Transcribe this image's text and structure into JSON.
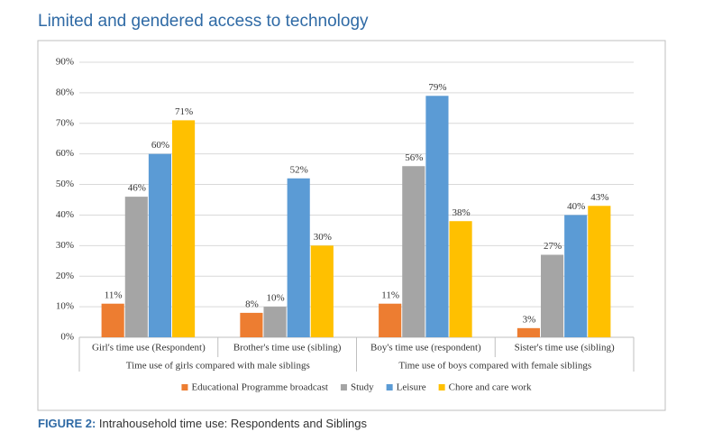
{
  "chart_data": {
    "type": "bar",
    "title": "Limited and gendered access to technology",
    "categories": [
      "Girl's time use (Respondent)",
      "Brother's time use (sibling)",
      "Boy's time use (respondent)",
      "Sister's time use (sibling)"
    ],
    "groups": [
      {
        "label": "Time use of girls compared with male siblings",
        "span": 2
      },
      {
        "label": "Time use of boys compared with female siblings",
        "span": 2
      }
    ],
    "series": [
      {
        "name": "Educational Programme broadcast",
        "color": "#ED7D31",
        "values": [
          11,
          8,
          11,
          3
        ],
        "value_labels": [
          "11%",
          "8%",
          "11%",
          "3%"
        ]
      },
      {
        "name": "Study",
        "color": "#A5A5A5",
        "values": [
          46,
          10,
          56,
          27
        ],
        "value_labels": [
          "46%",
          "10%",
          "56%",
          "27%"
        ]
      },
      {
        "name": "Leisure",
        "color": "#5B9BD5",
        "values": [
          60,
          52,
          79,
          40
        ],
        "value_labels": [
          "60%",
          "52%",
          "79%",
          "40%"
        ]
      },
      {
        "name": "Chore and care work",
        "color": "#FFC000",
        "values": [
          71,
          30,
          38,
          43
        ],
        "value_labels": [
          "71%",
          "30%",
          "38%",
          "43%"
        ]
      }
    ],
    "ylim": [
      0,
      90
    ],
    "yticks": [
      {
        "value": 0,
        "label": "0%"
      },
      {
        "value": 10,
        "label": "10%"
      },
      {
        "value": 20,
        "label": "20%"
      },
      {
        "value": 30,
        "label": "30%"
      },
      {
        "value": 40,
        "label": "40%"
      },
      {
        "value": 50,
        "label": "50%"
      },
      {
        "value": 60,
        "label": "60%"
      },
      {
        "value": 70,
        "label": "70%"
      },
      {
        "value": 80,
        "label": "80%"
      },
      {
        "value": 90,
        "label": "90%"
      }
    ],
    "grid": true,
    "legend": "bottom",
    "caption": {
      "label": "FIGURE 2:",
      "text": "Intrahousehold time use: Respondents and Siblings"
    }
  }
}
